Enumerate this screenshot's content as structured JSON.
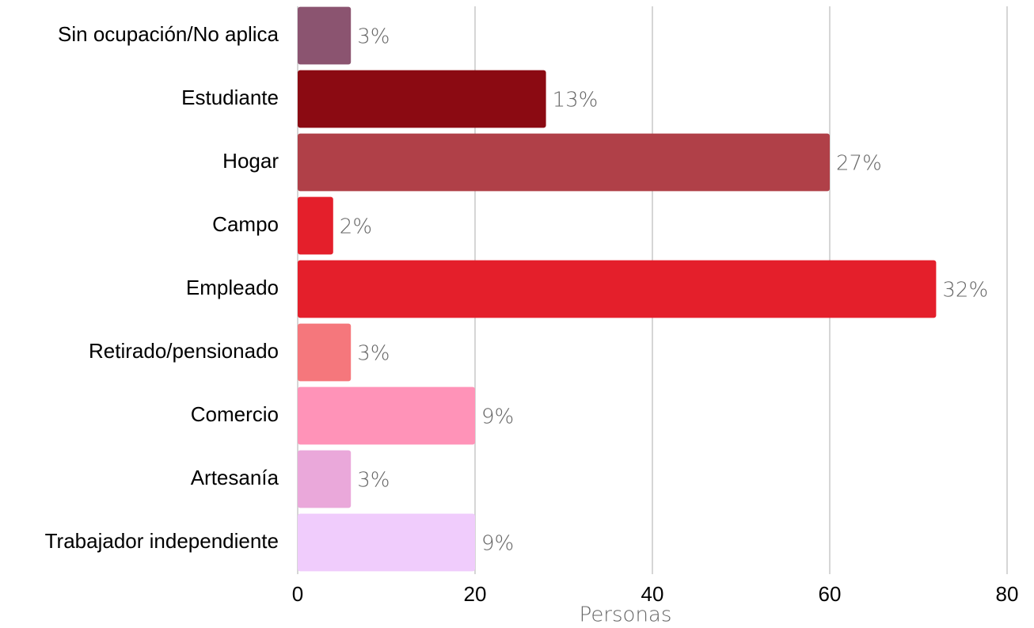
{
  "chart_data": {
    "type": "hbar",
    "categories": [
      "Sin ocupación/No aplica",
      "Estudiante",
      "Hogar",
      "Campo",
      "Empleado",
      "Retirado/pensionado",
      "Comercio",
      "Artesanía",
      "Trabajador independiente"
    ],
    "values": [
      6,
      28,
      60,
      4,
      72,
      6,
      20,
      6,
      20
    ],
    "data_labels": [
      "3%",
      "13%",
      "27%",
      "2%",
      "32%",
      "3%",
      "9%",
      "3%",
      "9%"
    ],
    "colors": [
      "#8b5470",
      "#8b0a12",
      "#b04048",
      "#e41f2b",
      "#e41f2b",
      "#f5777c",
      "#ff93b8",
      "#eaa8da",
      "#f0ccfc"
    ],
    "xlabel": "Personas",
    "xlim": [
      0,
      80
    ],
    "xticks": [
      0,
      20,
      40,
      60,
      80
    ],
    "grid": true
  }
}
